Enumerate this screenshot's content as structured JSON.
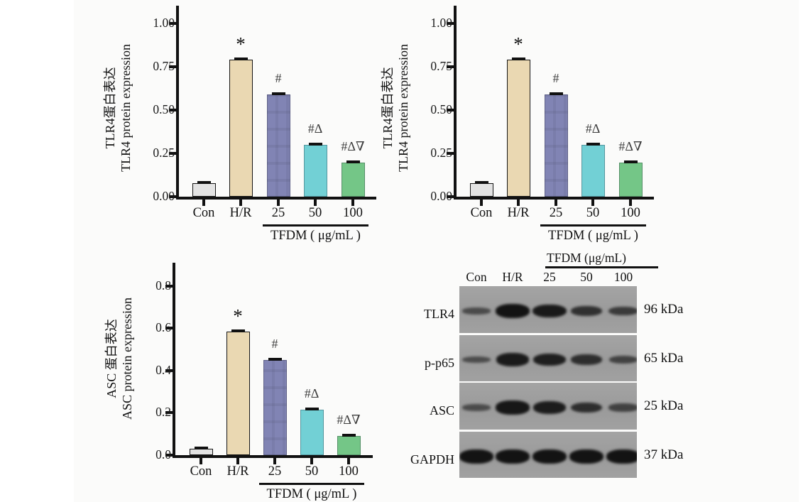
{
  "chart_data": [
    {
      "type": "bar",
      "id": "tlr4-left",
      "ylabel_line1": "TLR4蛋白表达",
      "ylabel_line2": "TLR4 protein expression",
      "categories": [
        "Con",
        "H/R",
        "25",
        "50",
        "100"
      ],
      "values": [
        0.08,
        0.79,
        0.59,
        0.3,
        0.195
      ],
      "errors": [
        0.01,
        0.01,
        0.01,
        0.01,
        0.01
      ],
      "significance": [
        "",
        "*",
        "#",
        "#Δ",
        "#Δ∇"
      ],
      "yticks": [
        0,
        0.25,
        0.5,
        0.75,
        1.0
      ],
      "ytick_labels": [
        "0.00",
        "0.25",
        "0.50",
        "0.75",
        "1.00"
      ],
      "ylim": [
        0,
        1.08
      ],
      "grid": false,
      "legend": "none",
      "group_label": "TFDM ( μg/mL )",
      "grouped_categories": [
        "25",
        "50",
        "100"
      ],
      "bar_colors": [
        "#e3e3e3",
        "#ead8b2",
        "#8184b4",
        "#72d0d5",
        "#74c687"
      ]
    },
    {
      "type": "bar",
      "id": "tlr4-right",
      "ylabel_line1": "TLR4蛋白表达",
      "ylabel_line2": "TLR4 protein expression",
      "categories": [
        "Con",
        "H/R",
        "25",
        "50",
        "100"
      ],
      "values": [
        0.08,
        0.79,
        0.59,
        0.3,
        0.195
      ],
      "errors": [
        0.01,
        0.01,
        0.01,
        0.01,
        0.01
      ],
      "significance": [
        "",
        "*",
        "#",
        "#Δ",
        "#Δ∇"
      ],
      "yticks": [
        0,
        0.25,
        0.5,
        0.75,
        1.0
      ],
      "ytick_labels": [
        "0.00",
        "0.25",
        "0.50",
        "0.75",
        "1.00"
      ],
      "ylim": [
        0,
        1.08
      ],
      "grid": false,
      "legend": "none",
      "group_label": "TFDM ( μg/mL )",
      "grouped_categories": [
        "25",
        "50",
        "100"
      ],
      "bar_colors": [
        "#e3e3e3",
        "#ead8b2",
        "#8184b4",
        "#72d0d5",
        "#74c687"
      ]
    },
    {
      "type": "bar",
      "id": "asc",
      "ylabel_line1": "ASC 蛋白表达",
      "ylabel_line2": "ASC protein expression",
      "categories": [
        "Con",
        "H/R",
        "25",
        "50",
        "100"
      ],
      "values": [
        0.03,
        0.585,
        0.45,
        0.215,
        0.09
      ],
      "errors": [
        0.005,
        0.008,
        0.008,
        0.008,
        0.005
      ],
      "significance": [
        "",
        "*",
        "#",
        "#Δ",
        "#Δ∇"
      ],
      "yticks": [
        0,
        0.2,
        0.4,
        0.6,
        0.8
      ],
      "ytick_labels": [
        "0.0",
        "0.2",
        "0.4",
        "0.6",
        "0.8"
      ],
      "ylim": [
        0,
        0.9
      ],
      "grid": false,
      "legend": "none",
      "group_label": "TFDM ( μg/mL )",
      "grouped_categories": [
        "25",
        "50",
        "100"
      ],
      "bar_colors": [
        "#e3e3e3",
        "#ead8b2",
        "#8184b4",
        "#72d0d5",
        "#74c687"
      ]
    }
  ],
  "blot": {
    "header": "TFDM (μg/mL)",
    "lane_labels": [
      "Con",
      "H/R",
      "25",
      "50",
      "100"
    ],
    "rows": [
      {
        "label": "TLR4",
        "mw": "96 kDa",
        "band_intensities": [
          0.3,
          1.0,
          0.92,
          0.62,
          0.5
        ]
      },
      {
        "label": "p-p65",
        "mw": "65 kDa",
        "band_intensities": [
          0.28,
          0.9,
          0.85,
          0.65,
          0.4
        ]
      },
      {
        "label": "ASC",
        "mw": "25 kDa",
        "band_intensities": [
          0.3,
          0.95,
          0.88,
          0.65,
          0.42
        ]
      },
      {
        "label": "GAPDH",
        "mw": "37 kDa",
        "band_intensities": [
          1.0,
          1.0,
          1.0,
          1.0,
          1.0
        ]
      }
    ]
  },
  "colors": {
    "axis": "#111111",
    "text": "#1a1a1a",
    "annotation": "#3d3d3d",
    "blot_background": "#9d9d9d",
    "band": "#131313"
  }
}
